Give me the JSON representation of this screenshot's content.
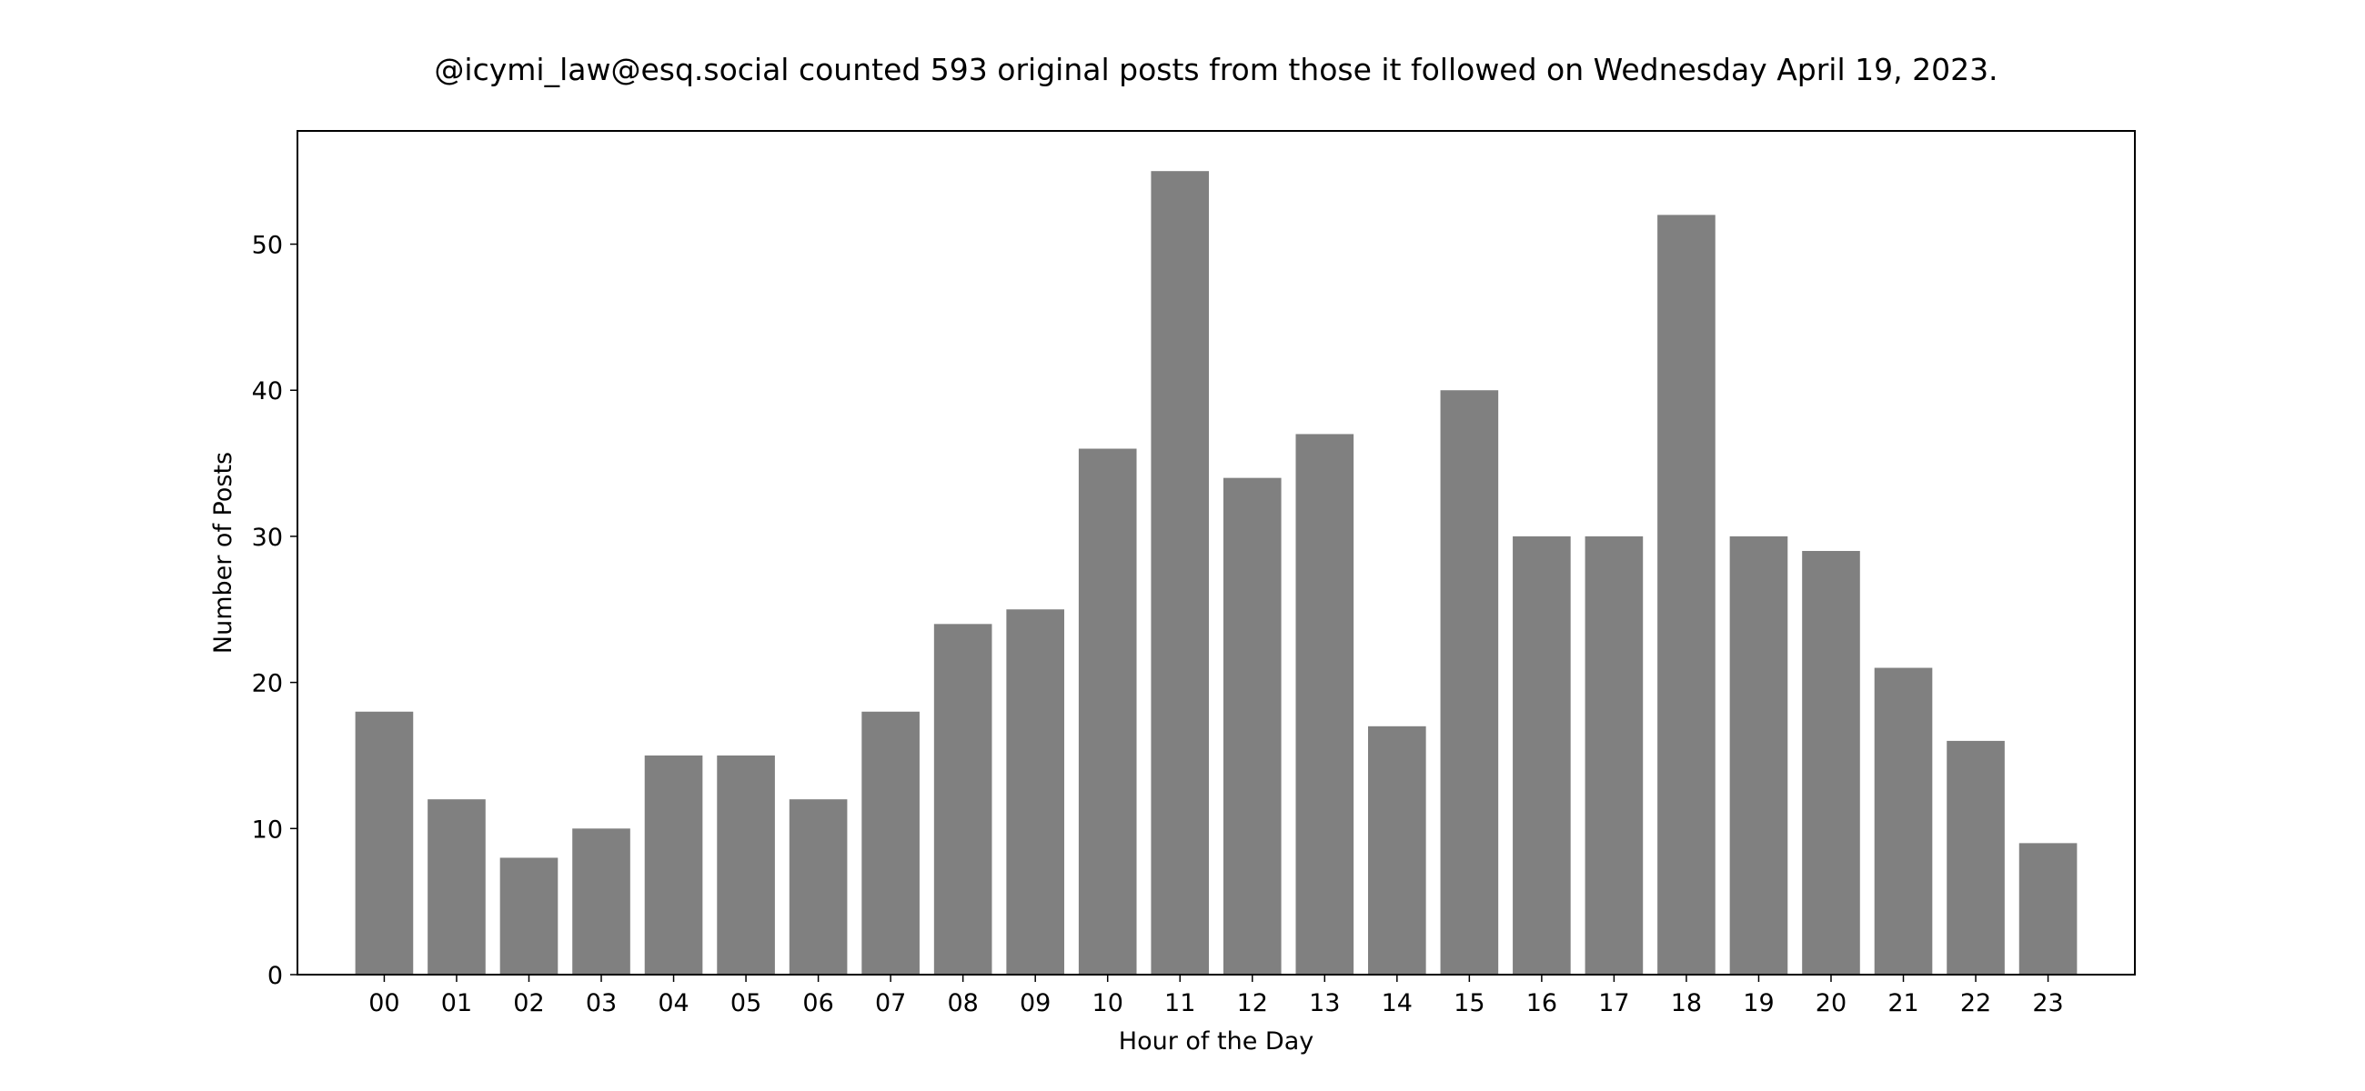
{
  "chart_data": {
    "type": "bar",
    "title": "@icymi_law@esq.social counted 593 original posts from those it followed on Wednesday April 19, 2023.",
    "xlabel": "Hour of the Day",
    "ylabel": "Number of Posts",
    "categories": [
      "00",
      "01",
      "02",
      "03",
      "04",
      "05",
      "06",
      "07",
      "08",
      "09",
      "10",
      "11",
      "12",
      "13",
      "14",
      "15",
      "16",
      "17",
      "18",
      "19",
      "20",
      "21",
      "22",
      "23"
    ],
    "values": [
      18,
      12,
      8,
      10,
      15,
      15,
      12,
      18,
      24,
      25,
      36,
      55,
      34,
      37,
      17,
      40,
      30,
      30,
      52,
      30,
      29,
      21,
      16,
      9
    ],
    "ylim": [
      0,
      57.75
    ],
    "yticks": [
      0,
      10,
      20,
      30,
      40,
      50
    ],
    "bar_color": "#808080",
    "grid": false,
    "legend": "none"
  }
}
